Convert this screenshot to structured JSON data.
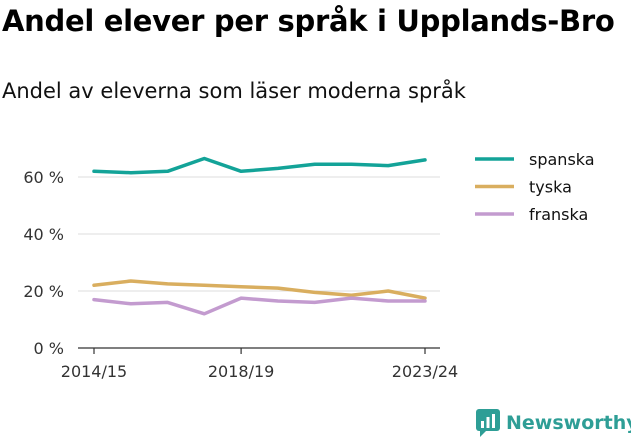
{
  "title": "Andel elever per språk i Upplands-Bro",
  "subtitle": "Andel av eleverna som läser moderna språk",
  "brand": "Newsworthy",
  "chart_data": {
    "type": "line",
    "x": [
      "2014/15",
      "2015/16",
      "2016/17",
      "2017/18",
      "2018/19",
      "2019/20",
      "2020/21",
      "2021/22",
      "2022/23",
      "2023/24"
    ],
    "x_tick_labels": [
      "2014/15",
      "2018/19",
      "2023/24"
    ],
    "y_ticks": [
      0,
      20,
      40,
      60
    ],
    "y_tick_labels": [
      "0 %",
      "20 %",
      "40 %",
      "60 %"
    ],
    "ylim": [
      0,
      70
    ],
    "grid": true,
    "legend_position": "right",
    "series": [
      {
        "name": "spanska",
        "color": "#13a398",
        "values": [
          62,
          61.5,
          62,
          66.5,
          62,
          63,
          64.5,
          64.5,
          64,
          66
        ]
      },
      {
        "name": "tyska",
        "color": "#d9ae5f",
        "values": [
          22,
          23.5,
          22.5,
          22,
          21.5,
          21,
          19.5,
          18.5,
          20,
          17.5
        ]
      },
      {
        "name": "franska",
        "color": "#c39bcf",
        "values": [
          17,
          15.5,
          16,
          12,
          17.5,
          16.5,
          16,
          17.5,
          16.5,
          16.5
        ]
      }
    ]
  }
}
